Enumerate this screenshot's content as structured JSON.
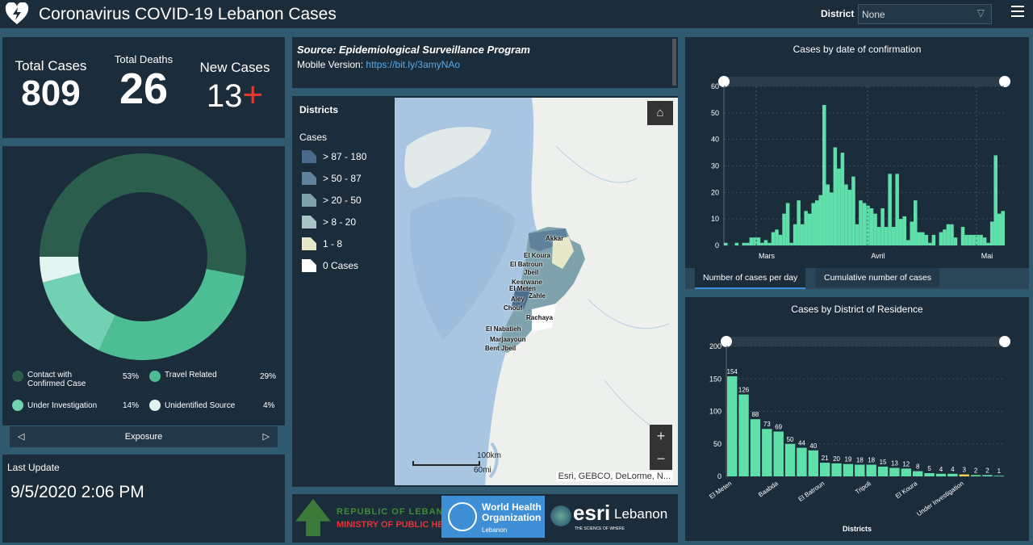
{
  "header": {
    "title": "Coronavirus COVID-19 Lebanon Cases",
    "district_label": "District",
    "district_value": "None"
  },
  "stats": {
    "total_cases_label": "Total Cases",
    "total_cases": "809",
    "total_deaths_label": "Total Deaths",
    "total_deaths": "26",
    "new_cases_label": "New Cases",
    "new_cases": "13",
    "new_cases_icon": "plus-icon"
  },
  "exposure": {
    "title": "Exposure",
    "slices": [
      {
        "label": "Contact with Confirmed Case",
        "pct": "53%",
        "value": 53,
        "color": "#2b5e4d"
      },
      {
        "label": "Travel Related",
        "pct": "29%",
        "value": 29,
        "color": "#4dbd94"
      },
      {
        "label": "Under Investigation",
        "pct": "14%",
        "value": 14,
        "color": "#72d1b2"
      },
      {
        "label": "Unidentified Source",
        "pct": "4%",
        "value": 4,
        "color": "#e4f5f1"
      }
    ]
  },
  "last_update": {
    "label": "Last Update",
    "value": "9/5/2020 2:06 PM"
  },
  "source": {
    "title": "Source: Epidemiological Surveillance Program",
    "mobile_label": "Mobile Version:",
    "mobile_link": "https://bit.ly/3amyNAo"
  },
  "map": {
    "legend_title": "Districts",
    "legend_subtitle": "Cases",
    "classes": [
      {
        "label": "> 87 - 180",
        "color": "#4a6a8c"
      },
      {
        "label": "> 50 - 87",
        "color": "#5f8199"
      },
      {
        "label": "> 20 - 50",
        "color": "#7ea3ad"
      },
      {
        "label": "> 8 - 20",
        "color": "#a9c4c4"
      },
      {
        "label": "1 - 8",
        "color": "#e6e8c9"
      },
      {
        "label": "0 Cases",
        "color": "#ffffff"
      }
    ],
    "districts": [
      "Akkar",
      "El Koura",
      "El Batroun",
      "Jbeil",
      "Kesrwane",
      "El Meten",
      "Aley",
      "Zahle",
      "Chouf",
      "Rachaya",
      "El Nabatieh",
      "Marjaayoun",
      "Bent Jbeil"
    ],
    "scale_km": "100km",
    "scale_mi": "60mi",
    "attribution": "Esri, GEBCO, DeLorme, N...",
    "zoom_in": "+",
    "zoom_out": "−"
  },
  "logos": {
    "moph_line1": "REPUBLIC OF LEBANON",
    "moph_line2": "MINISTRY OF PUBLIC HEALTH",
    "who_line1": "World Health",
    "who_line2": "Organization",
    "who_line3": "Lebanon",
    "esri": "esri",
    "esri_tag": "THE SCIENCE OF WHERE",
    "esri_country": "Lebanon"
  },
  "tabs": {
    "per_day": "Number of cases per day",
    "cumulative": "Cumulative number of cases"
  },
  "chart_data": [
    {
      "type": "bar",
      "title": "Cases by  date of confirmation",
      "xlabel": "",
      "ylabel": "",
      "ylim": [
        0,
        60
      ],
      "yticks": [
        0,
        10,
        20,
        30,
        40,
        50,
        60
      ],
      "xticks": [
        "Mars",
        "Avril",
        "Mai"
      ],
      "color": "#5fe0aa",
      "grid": true,
      "values": [
        1,
        0,
        0,
        1,
        0,
        1,
        1,
        3,
        3,
        3,
        1,
        2,
        1,
        5,
        6,
        4,
        12,
        16,
        1,
        8,
        17,
        8,
        13,
        12,
        16,
        17,
        19,
        53,
        23,
        20,
        37,
        29,
        35,
        23,
        21,
        26,
        8,
        17,
        16,
        15,
        14,
        12,
        7,
        14,
        7,
        27,
        7,
        27,
        10,
        11,
        2,
        9,
        17,
        5,
        5,
        4,
        1,
        4,
        0,
        5,
        6,
        8,
        8,
        3,
        0,
        7,
        4,
        4,
        4,
        4,
        4,
        3,
        1,
        9,
        34,
        12,
        13
      ]
    },
    {
      "type": "bar",
      "title": "Cases by District of Residence",
      "xlabel": "Districts",
      "ylabel": "",
      "ylim": [
        0,
        200
      ],
      "yticks": [
        0,
        50,
        100,
        150,
        200
      ],
      "grid": true,
      "color": "#5fe0aa",
      "highlight_color": "#f2d64b",
      "highlight_index": 20,
      "categories": [
        "El Meten",
        "",
        "",
        "",
        "Baabda",
        "",
        "",
        "",
        "El Batroun",
        "",
        "",
        "",
        "Tripoli",
        "",
        "",
        "",
        "El Koura",
        "",
        "",
        "",
        "Under Investigation",
        "",
        "",
        ""
      ],
      "values": [
        154,
        126,
        88,
        73,
        69,
        50,
        44,
        40,
        21,
        20,
        19,
        18,
        18,
        15,
        13,
        12,
        8,
        5,
        4,
        4,
        3,
        2,
        2,
        1
      ]
    }
  ]
}
